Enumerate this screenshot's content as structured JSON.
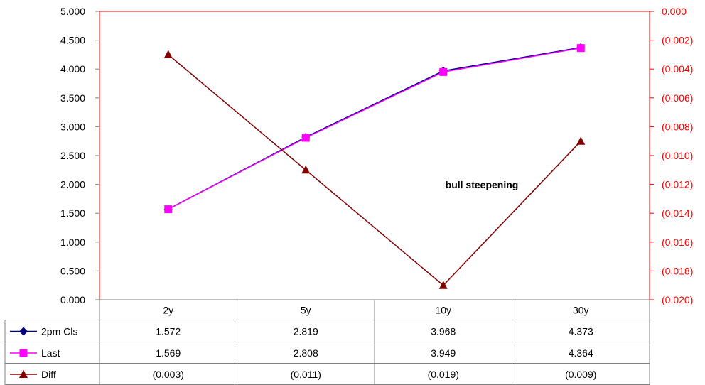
{
  "chart_data": {
    "type": "line",
    "categories": [
      "2y",
      "5y",
      "10y",
      "30y"
    ],
    "series": [
      {
        "name": "2pm Cls",
        "axis": "left",
        "color": "#000080",
        "marker": "diamond",
        "values": [
          1.572,
          2.819,
          3.968,
          4.373
        ],
        "labels": [
          "1.572",
          "2.819",
          "3.968",
          "4.373"
        ]
      },
      {
        "name": "Last",
        "axis": "left",
        "color": "#FF00FF",
        "marker": "square",
        "values": [
          1.569,
          2.808,
          3.949,
          4.364
        ],
        "labels": [
          "1.569",
          "2.808",
          "3.949",
          "4.364"
        ]
      },
      {
        "name": "Diff",
        "axis": "right",
        "color": "#800000",
        "marker": "triangle",
        "values": [
          -0.003,
          -0.011,
          -0.019,
          -0.009
        ],
        "labels": [
          "(0.003)",
          "(0.011)",
          "(0.019)",
          "(0.009)"
        ]
      }
    ],
    "y_left": {
      "ylim": [
        0,
        5
      ],
      "ticks": [
        0,
        0.5,
        1,
        1.5,
        2,
        2.5,
        3,
        3.5,
        4,
        4.5,
        5
      ],
      "tick_labels": [
        "0.000",
        "0.500",
        "1.000",
        "1.500",
        "2.000",
        "2.500",
        "3.000",
        "3.500",
        "4.000",
        "4.500",
        "5.000"
      ]
    },
    "y_right": {
      "ylim": [
        -0.02,
        0
      ],
      "color": "#FF0000",
      "ticks": [
        -0.02,
        -0.018,
        -0.016,
        -0.014,
        -0.012,
        -0.01,
        -0.008,
        -0.006,
        -0.004,
        -0.002,
        0
      ],
      "tick_labels": [
        "(0.020)",
        "(0.018)",
        "(0.016)",
        "(0.014)",
        "(0.012)",
        "(0.010)",
        "(0.008)",
        "(0.006)",
        "(0.004)",
        "(0.002)",
        "0.000"
      ]
    },
    "annotation": "bull steepening",
    "grid": false,
    "legend": "data-table"
  }
}
